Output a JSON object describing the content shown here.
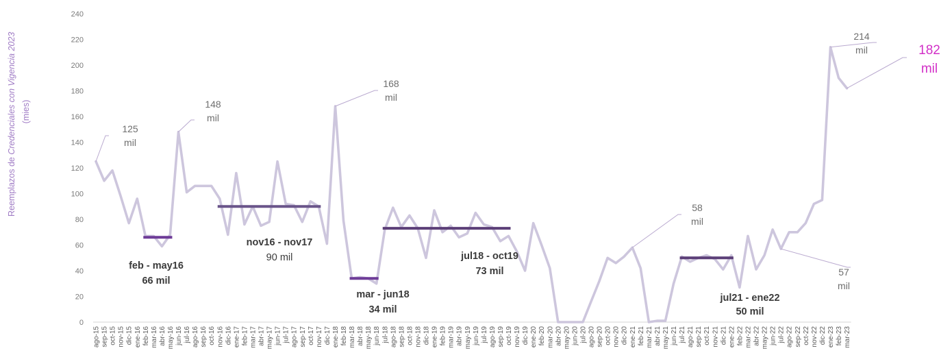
{
  "chart_data": {
    "type": "line",
    "ylabel_pre": "Reemplazos de ",
    "ylabel_em": "Credenciales con Vigencia 2023",
    "ylabel_unit": "(mies)",
    "ylim": [
      0,
      240
    ],
    "yticks": [
      0,
      20,
      40,
      60,
      80,
      100,
      120,
      140,
      160,
      180,
      200,
      220,
      240
    ],
    "categories": [
      "ago-15",
      "sep-15",
      "oct-15",
      "nov-15",
      "dic-15",
      "ene-16",
      "feb-16",
      "mar-16",
      "abr-16",
      "may-16",
      "jun-16",
      "jul-16",
      "ago-16",
      "sep-16",
      "oct-16",
      "nov-16",
      "dic-16",
      "ene-17",
      "feb-17",
      "mar-17",
      "abr-17",
      "may-17",
      "jun-17",
      "jul-17",
      "ago-17",
      "sep-17",
      "oct-17",
      "nov-17",
      "dic-17",
      "ene-18",
      "feb-18",
      "mar-18",
      "abr-18",
      "may-18",
      "jun-18",
      "jul-18",
      "ago-18",
      "sep-18",
      "oct-18",
      "nov-18",
      "dic-18",
      "ene-19",
      "feb-19",
      "mar-19",
      "abr-19",
      "may-19",
      "jun-19",
      "jul-19",
      "ago-19",
      "sep-19",
      "oct-19",
      "nov-19",
      "dic-19",
      "ene-20",
      "feb-20",
      "mar-20",
      "abr-20",
      "may-20",
      "jun-20",
      "jul-20",
      "ago-20",
      "sep-20",
      "oct-20",
      "nov-20",
      "dic-20",
      "ene-21",
      "feb-21",
      "mar-21",
      "abr-21",
      "may-21",
      "jun-21",
      "jul-21",
      "ago-21",
      "sep-21",
      "oct-21",
      "nov-21",
      "dic-21",
      "ene-22",
      "feb-22",
      "mar-22",
      "abr-22",
      "may-22",
      "jun-22",
      "jul-22",
      "ago-22",
      "sep-22",
      "oct-22",
      "nov-22",
      "dic-22",
      "ene-23",
      "feb-23",
      "mar-23"
    ],
    "values": [
      125,
      110,
      118,
      98,
      77,
      96,
      67,
      67,
      59,
      68,
      148,
      101,
      106,
      106,
      106,
      96,
      68,
      116,
      76,
      90,
      75,
      78,
      125,
      92,
      91,
      78,
      94,
      90,
      61,
      168,
      79,
      34,
      35,
      34,
      30,
      72,
      89,
      74,
      83,
      73,
      50,
      87,
      70,
      75,
      66,
      69,
      85,
      76,
      74,
      63,
      67,
      55,
      40,
      77,
      60,
      42,
      0,
      0,
      0,
      0,
      16,
      32,
      50,
      46,
      51,
      58,
      42,
      0,
      1,
      1,
      30,
      51,
      47,
      50,
      52,
      49,
      41,
      52,
      27,
      67,
      41,
      52,
      72,
      57,
      70,
      70,
      77,
      92,
      95,
      214,
      190,
      182
    ],
    "series_color": "#cdc6dd",
    "bar_color": "#5c3f78",
    "bar_color_light": "#6e3c98",
    "point_labels": [
      {
        "category": "ago-15",
        "value_text": "125",
        "unit_text": "mil"
      },
      {
        "category": "jun-16",
        "value_text": "148",
        "unit_text": "mil"
      },
      {
        "category": "ene-18",
        "value_text": "168",
        "unit_text": "mil"
      },
      {
        "category": "ene-21",
        "value_text": "58",
        "unit_text": "mil"
      },
      {
        "category": "jul-22",
        "value_text": "57",
        "unit_text": "mil"
      },
      {
        "category": "ene-23",
        "value_text": "214",
        "unit_text": "mil"
      },
      {
        "category": "mar-23",
        "value_text": "182",
        "unit_text": "mil"
      }
    ],
    "period_averages": [
      {
        "start": "feb-16",
        "end": "may-16",
        "value": 66,
        "label": "feb - may16",
        "value_label": "66 mil"
      },
      {
        "start": "nov-16",
        "end": "nov-17",
        "value": 90,
        "label": "nov16 - nov17",
        "value_label": "90 mil"
      },
      {
        "start": "mar-18",
        "end": "jun-18",
        "value": 34,
        "label": "mar - jun18",
        "value_label": "34 mil"
      },
      {
        "start": "jul-18",
        "end": "oct-19",
        "value": 73,
        "label": "jul18 - oct19",
        "value_label": "73 mil"
      },
      {
        "start": "jul-21",
        "end": "ene-22",
        "value": 50,
        "label": "jul21 - ene22",
        "value_label": "50 mil"
      }
    ]
  }
}
